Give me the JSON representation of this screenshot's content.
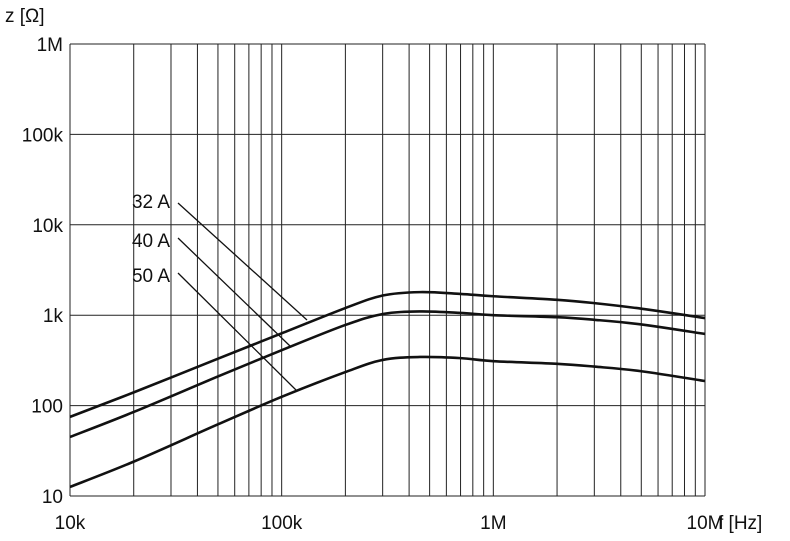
{
  "chart_data": {
    "type": "line",
    "title": "",
    "xlabel": "f [Hz]",
    "ylabel": "z [Ω]",
    "xscale": "log",
    "yscale": "log",
    "xlim": [
      10000,
      10000000
    ],
    "ylim": [
      10,
      1000000
    ],
    "grid": true,
    "x_ticks": [
      {
        "v": 10000,
        "label": "10k"
      },
      {
        "v": 100000,
        "label": "100k"
      },
      {
        "v": 1000000,
        "label": "1M"
      },
      {
        "v": 10000000,
        "label": "10M"
      }
    ],
    "y_ticks": [
      {
        "v": 10,
        "label": "10"
      },
      {
        "v": 100,
        "label": "100"
      },
      {
        "v": 1000,
        "label": "1k"
      },
      {
        "v": 10000,
        "label": "10k"
      },
      {
        "v": 100000,
        "label": "100k"
      },
      {
        "v": 1000000,
        "label": "1M"
      }
    ],
    "x": [
      10000,
      20000,
      50000,
      100000,
      200000,
      300000,
      450000,
      700000,
      1000000,
      2000000,
      3000000,
      5000000,
      10000000
    ],
    "series": [
      {
        "name": "32 A",
        "values": [
          75,
          140,
          330,
          630,
          1200,
          1650,
          1800,
          1720,
          1620,
          1480,
          1360,
          1180,
          930
        ]
      },
      {
        "name": "40 A",
        "values": [
          45,
          85,
          210,
          410,
          780,
          1030,
          1100,
          1060,
          1000,
          950,
          890,
          790,
          620
        ]
      },
      {
        "name": "50 A",
        "values": [
          12.6,
          24,
          62,
          125,
          235,
          320,
          345,
          335,
          310,
          290,
          270,
          240,
          187
        ]
      }
    ]
  }
}
